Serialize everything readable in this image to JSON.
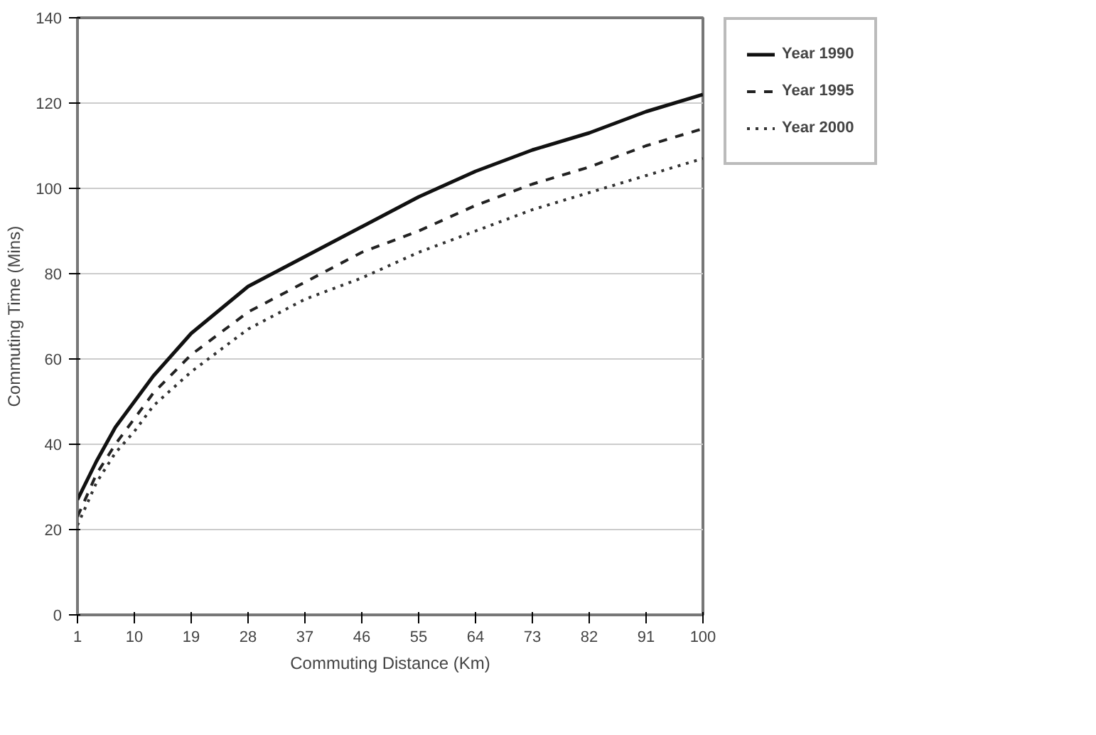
{
  "chart_data": {
    "type": "line",
    "xlabel": "Commuting Distance (Km)",
    "ylabel": "Commuting Time (Mins)",
    "x": [
      1,
      4,
      7,
      10,
      13,
      19,
      28,
      37,
      46,
      55,
      64,
      73,
      82,
      91,
      100
    ],
    "series": [
      {
        "name": "Year 1990",
        "color": "#111111",
        "line_style": "solid",
        "values": [
          27,
          36,
          44,
          50,
          56,
          66,
          77,
          84,
          91,
          98,
          104,
          109,
          113,
          118,
          122
        ]
      },
      {
        "name": "Year 1995",
        "color": "#222222",
        "line_style": "dashed",
        "values": [
          23,
          33,
          40,
          46,
          52,
          61,
          71,
          78,
          85,
          90,
          96,
          101,
          105,
          110,
          114
        ]
      },
      {
        "name": "Year 2000",
        "color": "#333333",
        "line_style": "dotted",
        "values": [
          21,
          31,
          38,
          43,
          49,
          57,
          67,
          74,
          79,
          85,
          90,
          95,
          99,
          103,
          107
        ]
      }
    ],
    "xlim": [
      1,
      100
    ],
    "ylim": [
      0,
      140
    ],
    "xticks": [
      1,
      10,
      19,
      28,
      37,
      46,
      55,
      64,
      73,
      82,
      91,
      100
    ],
    "yticks": [
      0,
      20,
      40,
      60,
      80,
      100,
      120,
      140
    ],
    "grid": "y",
    "legend": "right",
    "marker": "none"
  }
}
